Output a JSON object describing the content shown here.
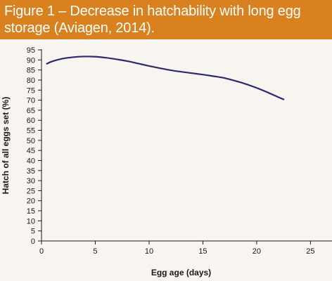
{
  "figure": {
    "title": "Figure 1 – Decrease in hatchability with long egg storage (Aviagen, 2014)."
  },
  "chart_data": {
    "type": "line",
    "xlabel": "Egg age (days)",
    "ylabel": "Hatch of all eggs set (%)",
    "xlim": [
      0,
      27
    ],
    "ylim": [
      0,
      95
    ],
    "xticks": [
      0,
      5,
      10,
      15,
      20,
      25
    ],
    "yticks": [
      0,
      5,
      10,
      15,
      20,
      25,
      30,
      35,
      40,
      45,
      50,
      55,
      60,
      65,
      70,
      75,
      80,
      85,
      90,
      95
    ],
    "grid": false,
    "series": [
      {
        "color": "#2d2a6e",
        "x": [
          0.5,
          1,
          2,
          3,
          4,
          5,
          6,
          7,
          8,
          9,
          10,
          11,
          12,
          13,
          14,
          15,
          16,
          17,
          18,
          19,
          20,
          21,
          22,
          22.5
        ],
        "y": [
          88.1,
          89.3,
          90.7,
          91.4,
          91.7,
          91.6,
          91.1,
          90.3,
          89.4,
          88.2,
          87.0,
          85.9,
          84.9,
          84.1,
          83.4,
          82.7,
          81.9,
          81.0,
          79.6,
          78.0,
          76.1,
          73.9,
          71.5,
          70.4
        ]
      }
    ],
    "colors": {
      "line": "#2d2a6e",
      "axis": "#1a1a1a",
      "background": "#f8f4f0",
      "header": "#d9801f"
    }
  }
}
